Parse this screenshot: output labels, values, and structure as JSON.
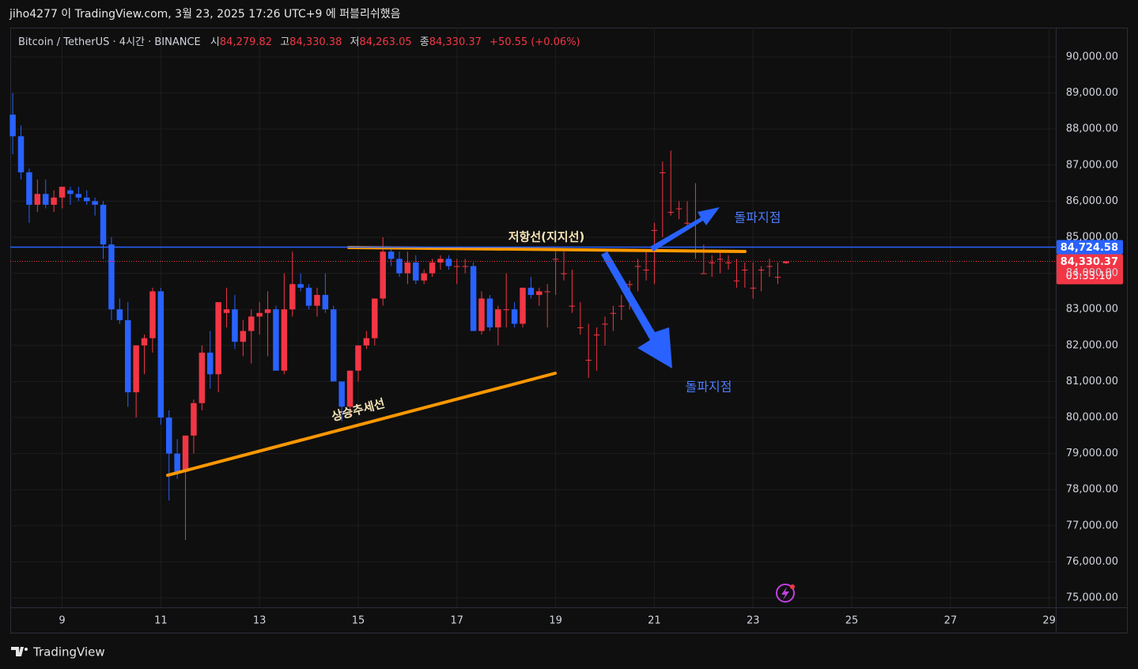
{
  "header": "jiho4277 이 TradingView.com, 3월 23, 2025 17:26 UTC+9 에 퍼블리쉬했음",
  "footer": "TradingView",
  "chart_data": {
    "type": "candlestick",
    "legend": {
      "symbol": "Bitcoin / TetherUS · 4시간 · BINANCE",
      "open_label": "시",
      "open": "84,279.82",
      "high_label": "고",
      "high": "84,330.38",
      "low_label": "저",
      "low": "84,263.05",
      "close_label": "종",
      "close": "84,330.37",
      "change": "+50.55 (+0.06%)"
    },
    "up_color": "#f23645",
    "down_color": "#2962ff",
    "open": [
      88400,
      87800,
      86800,
      85900,
      86200,
      85900,
      86100,
      86300,
      86200,
      86100,
      86000,
      85900,
      84800,
      83000,
      82700,
      80700,
      82000,
      82200,
      83500,
      80000,
      79000,
      78500,
      79500,
      80400,
      81800,
      81200,
      82900,
      83000,
      82100,
      82400,
      82800,
      82900,
      83000,
      81300,
      83000,
      83700,
      83600,
      83100,
      83400,
      83000,
      81000,
      80300,
      81300,
      82000,
      82200,
      83300,
      84600,
      84400,
      84000,
      84300,
      83800,
      84000,
      84300,
      84400,
      84200,
      84200,
      84200,
      82400,
      83300,
      82500,
      83000,
      83000,
      82600,
      83600,
      83400,
      83500,
      84400,
      84000,
      83100,
      82500,
      81600,
      82300,
      82600,
      82900,
      83100,
      83700,
      84200,
      84100,
      85200,
      86800,
      85700,
      85800,
      85400,
      84600,
      84000,
      84300,
      84400,
      84300,
      83800,
      84100,
      83600,
      84100,
      84200,
      83900,
      84279.82
    ],
    "high": [
      89000,
      88100,
      86900,
      86600,
      86600,
      86300,
      86400,
      86400,
      86400,
      86300,
      86100,
      86000,
      85000,
      83300,
      83200,
      82000,
      82300,
      83600,
      83600,
      80200,
      79400,
      79400,
      80500,
      82000,
      82400,
      83200,
      83600,
      83400,
      82700,
      83000,
      83200,
      83500,
      83100,
      84000,
      84600,
      84000,
      83700,
      83600,
      84000,
      83100,
      81000,
      81300,
      82000,
      82400,
      83300,
      85000,
      84700,
      84600,
      84600,
      84500,
      84100,
      84400,
      84500,
      84500,
      84400,
      84400,
      84300,
      83500,
      83400,
      83100,
      84000,
      83200,
      83600,
      83900,
      83600,
      83700,
      84600,
      84600,
      84100,
      83200,
      82600,
      82500,
      82800,
      83100,
      83400,
      83800,
      84400,
      84600,
      85400,
      87100,
      87400,
      86000,
      86000,
      86500,
      84800,
      84500,
      84600,
      84500,
      84400,
      84300,
      84300,
      84200,
      84400,
      84300,
      84330.38
    ],
    "low": [
      87300,
      86600,
      85400,
      85700,
      85800,
      85700,
      85800,
      85900,
      86000,
      85900,
      85600,
      84400,
      82700,
      82600,
      80300,
      80000,
      81200,
      81800,
      79800,
      77700,
      78300,
      76600,
      79000,
      80200,
      80800,
      80700,
      82500,
      81900,
      81700,
      81500,
      82300,
      81700,
      81300,
      81200,
      82800,
      83500,
      83000,
      82800,
      82900,
      81000,
      79900,
      80000,
      81000,
      81900,
      82000,
      83100,
      84200,
      83900,
      83700,
      83700,
      83700,
      83900,
      84100,
      84100,
      83700,
      84000,
      82400,
      82300,
      82400,
      82000,
      82500,
      82500,
      82500,
      83300,
      83100,
      82500,
      83400,
      83800,
      82900,
      82300,
      81100,
      81300,
      82000,
      82400,
      82700,
      83000,
      83500,
      83800,
      83700,
      85000,
      85600,
      85500,
      85200,
      84400,
      84000,
      83900,
      84000,
      84100,
      83600,
      83600,
      83300,
      83500,
      83900,
      83700,
      84263.05
    ],
    "close": [
      87800,
      86800,
      85900,
      86200,
      85900,
      86100,
      86400,
      86200,
      86100,
      86000,
      85900,
      84800,
      83000,
      82700,
      80700,
      82000,
      82200,
      83500,
      80000,
      79000,
      78500,
      79500,
      80400,
      81800,
      81200,
      83200,
      83000,
      82100,
      82400,
      82800,
      82900,
      83000,
      81300,
      83000,
      83700,
      83600,
      83100,
      83400,
      83000,
      81000,
      80300,
      81300,
      82000,
      82200,
      83300,
      84600,
      84400,
      84000,
      84300,
      83800,
      84000,
      84300,
      84400,
      84200,
      84200,
      84200,
      82400,
      83300,
      82500,
      83000,
      83000,
      82600,
      83600,
      83400,
      83500,
      83500,
      84400,
      84000,
      83100,
      82500,
      81600,
      82300,
      82600,
      82900,
      83100,
      83700,
      84200,
      84100,
      85200,
      86800,
      85700,
      85800,
      85400,
      84600,
      84000,
      84300,
      84400,
      84300,
      83800,
      84100,
      83600,
      84100,
      84200,
      83900,
      84330.37
    ],
    "xlim": [
      -0.3,
      126.8
    ],
    "xticks": [
      {
        "value": 6,
        "label": "9"
      },
      {
        "value": 18,
        "label": "11"
      },
      {
        "value": 30,
        "label": "13"
      },
      {
        "value": 42,
        "label": "15"
      },
      {
        "value": 54,
        "label": "17"
      },
      {
        "value": 66,
        "label": "19"
      },
      {
        "value": 78,
        "label": "21"
      },
      {
        "value": 90,
        "label": "23"
      },
      {
        "value": 102,
        "label": "25"
      },
      {
        "value": 114,
        "label": "27"
      },
      {
        "value": 126,
        "label": "29"
      }
    ],
    "ylim": [
      74737,
      90811
    ],
    "yticks": [
      {
        "value": 75000,
        "label": "75,000.00"
      },
      {
        "value": 76000,
        "label": "76,000.00"
      },
      {
        "value": 77000,
        "label": "77,000.00"
      },
      {
        "value": 78000,
        "label": "78,000.00"
      },
      {
        "value": 79000,
        "label": "79,000.00"
      },
      {
        "value": 80000,
        "label": "80,000.00"
      },
      {
        "value": 81000,
        "label": "81,000.00"
      },
      {
        "value": 82000,
        "label": "82,000.00"
      },
      {
        "value": 83000,
        "label": "83,000.00"
      },
      {
        "value": 84000,
        "label": "84,000.00"
      },
      {
        "value": 85000,
        "label": "85,000.00"
      },
      {
        "value": 86000,
        "label": "86,000.00"
      },
      {
        "value": 87000,
        "label": "87,000.00"
      },
      {
        "value": 88000,
        "label": "88,000.00"
      },
      {
        "value": 89000,
        "label": "89,000.00"
      },
      {
        "value": 90000,
        "label": "90,000.00"
      }
    ],
    "grid": true,
    "hline": {
      "value": 84724.58,
      "label": "84,724.58"
    },
    "last_price": {
      "value": 84330.37,
      "label": "84,330.37"
    },
    "countdown": "03:33:10",
    "annotations": {
      "trend": "상승추세선",
      "resistance": "저항선(지지선)",
      "breakout_up": "돌파지점",
      "breakout_down": "돌파지점"
    }
  }
}
